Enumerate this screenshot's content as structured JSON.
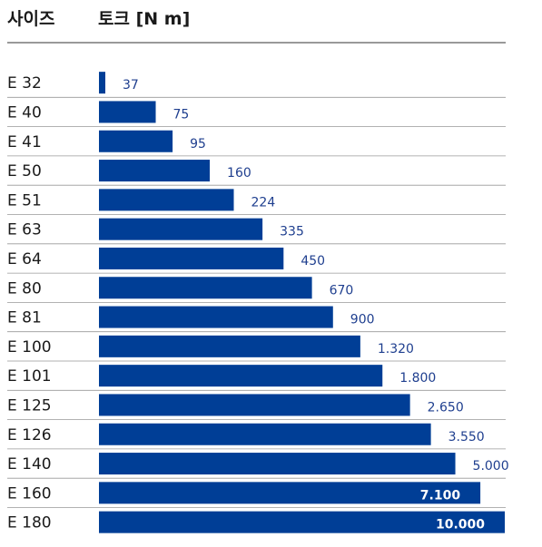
{
  "header": {
    "category_label": "사이즈",
    "value_label": "토크 [N m]"
  },
  "chart_data": {
    "type": "bar",
    "orientation": "horizontal",
    "xlabel": "토크 [N m]",
    "ylabel": "사이즈",
    "categories": [
      "E 32",
      "E 40",
      "E 41",
      "E 50",
      "E 51",
      "E 63",
      "E 64",
      "E 80",
      "E 81",
      "E 100",
      "E 101",
      "E 125",
      "E 126",
      "E 140",
      "E 160",
      "E 180"
    ],
    "values": [
      37,
      75,
      95,
      160,
      224,
      335,
      450,
      670,
      900,
      1320,
      1800,
      2650,
      3550,
      5000,
      7100,
      10000
    ],
    "value_labels": [
      "37",
      "75",
      "95",
      "160",
      "224",
      "335",
      "450",
      "670",
      "900",
      "1.320",
      "1.800",
      "2.650",
      "3.550",
      "5.000",
      "7.100",
      "10.000"
    ],
    "scale": "log",
    "bar_color": "#003e96",
    "label_color": "#1f3f8f",
    "grid": false
  }
}
